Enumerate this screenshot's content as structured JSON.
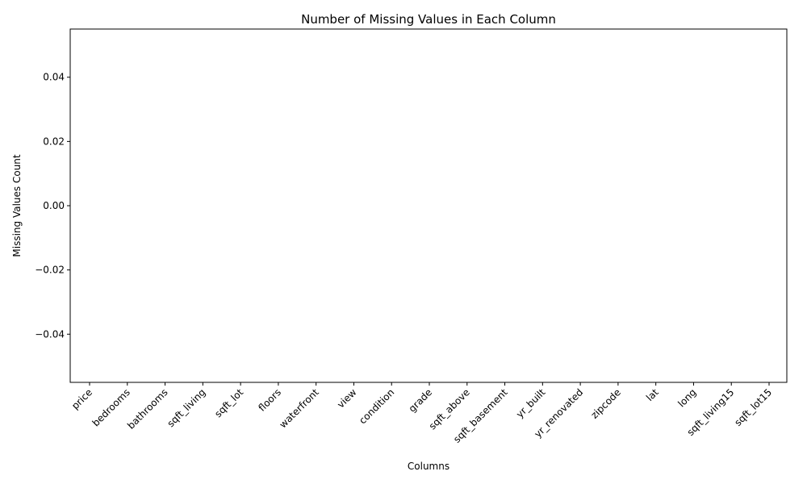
{
  "chart_data": {
    "type": "bar",
    "title": "Number of Missing Values in Each Column",
    "xlabel": "Columns",
    "ylabel": "Missing Values Count",
    "categories": [
      "price",
      "bedrooms",
      "bathrooms",
      "sqft_living",
      "sqft_lot",
      "floors",
      "waterfront",
      "view",
      "condition",
      "grade",
      "sqft_above",
      "sqft_basement",
      "yr_built",
      "yr_renovated",
      "zipcode",
      "lat",
      "long",
      "sqft_living15",
      "sqft_lot15"
    ],
    "values": [
      0,
      0,
      0,
      0,
      0,
      0,
      0,
      0,
      0,
      0,
      0,
      0,
      0,
      0,
      0,
      0,
      0,
      0,
      0
    ],
    "ylim": [
      -0.055,
      0.055
    ],
    "yticks": [
      -0.04,
      -0.02,
      0.0,
      0.02,
      0.04
    ],
    "ytick_labels": [
      "−0.04",
      "−0.02",
      "0.00",
      "0.02",
      "0.04"
    ],
    "grid": false,
    "bar_color": "#1f77b4"
  }
}
